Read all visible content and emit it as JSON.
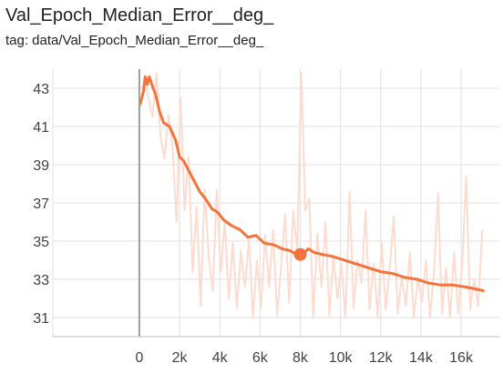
{
  "card": {
    "title": "Val_Epoch_Median_Error__deg_",
    "tag": "tag: data/Val_Epoch_Median_Error__deg_"
  },
  "colors": {
    "smoothed": "#f4733b",
    "raw": "#fcdcd0",
    "grid": "#e0e0e0",
    "axis": "#9e9e9e"
  },
  "chart_data": {
    "type": "line",
    "title": "Val_Epoch_Median_Error__deg_",
    "xlabel": "",
    "ylabel": "",
    "xlim": [
      -4300,
      17900
    ],
    "ylim": [
      30,
      44
    ],
    "x_ticks": [
      0,
      2000,
      4000,
      6000,
      8000,
      10000,
      12000,
      14000,
      16000
    ],
    "x_tick_labels": [
      "0",
      "2k",
      "4k",
      "6k",
      "8k",
      "10k",
      "12k",
      "14k",
      "16k"
    ],
    "y_ticks": [
      31,
      33,
      35,
      37,
      39,
      41,
      43
    ],
    "y_tick_labels": [
      "31",
      "33",
      "35",
      "37",
      "39",
      "41",
      "43"
    ],
    "grid": true,
    "series": [
      {
        "role": "smoothed",
        "x": [
          50,
          200,
          300,
          400,
          500,
          650,
          800,
          1000,
          1200,
          1500,
          1800,
          2000,
          2200,
          2500,
          2800,
          3000,
          3300,
          3600,
          3900,
          4200,
          4600,
          5000,
          5400,
          5800,
          6200,
          6700,
          7100,
          7500,
          7800,
          8000,
          8200,
          8400,
          8700,
          9100,
          9600,
          10200,
          10800,
          11400,
          12000,
          12600,
          13200,
          13800,
          14400,
          15000,
          15600,
          16200,
          16700,
          17100
        ],
        "values": [
          42.2,
          42.8,
          43.6,
          43.2,
          43.6,
          43.1,
          42.7,
          41.8,
          41.2,
          41.0,
          40.3,
          39.4,
          39.2,
          38.6,
          38.0,
          37.6,
          37.2,
          36.7,
          36.5,
          36.1,
          35.8,
          35.6,
          35.2,
          35.3,
          34.9,
          34.8,
          34.6,
          34.5,
          34.3,
          34.3,
          34.4,
          34.6,
          34.4,
          34.3,
          34.2,
          34.0,
          33.8,
          33.6,
          33.4,
          33.3,
          33.1,
          33.0,
          32.8,
          32.7,
          32.7,
          32.6,
          32.5,
          32.4
        ]
      },
      {
        "role": "raw",
        "x": [
          50,
          250,
          450,
          650,
          850,
          1050,
          1250,
          1450,
          1650,
          1850,
          2050,
          2250,
          2450,
          2650,
          2850,
          3050,
          3250,
          3450,
          3650,
          3850,
          4050,
          4250,
          4450,
          4650,
          4850,
          5050,
          5250,
          5450,
          5650,
          5850,
          6050,
          6250,
          6450,
          6650,
          6850,
          7050,
          7250,
          7450,
          7650,
          7850,
          8050,
          8250,
          8450,
          8650,
          8850,
          9050,
          9250,
          9450,
          9650,
          9850,
          10050,
          10250,
          10450,
          10650,
          10850,
          11050,
          11250,
          11450,
          11650,
          11850,
          12050,
          12250,
          12450,
          12650,
          12850,
          13050,
          13250,
          13450,
          13650,
          13850,
          14050,
          14250,
          14450,
          14650,
          14850,
          15050,
          15250,
          15450,
          15650,
          15850,
          16050,
          16250,
          16450,
          16650,
          16850,
          17050
        ],
        "values": [
          42.0,
          43.6,
          42.5,
          41.5,
          43.8,
          40.5,
          39.3,
          41.6,
          40.0,
          36.0,
          42.5,
          36.6,
          39.4,
          33.4,
          36.8,
          31.6,
          37.7,
          34.2,
          32.4,
          37.7,
          33.4,
          36.0,
          32.0,
          34.9,
          31.5,
          34.5,
          32.6,
          35.1,
          31.0,
          34.0,
          31.5,
          35.3,
          32.6,
          35.6,
          31.1,
          33.7,
          36.4,
          31.8,
          36.6,
          34.5,
          43.8,
          36.6,
          37.2,
          31.0,
          35.4,
          32.6,
          36.0,
          31.1,
          34.2,
          32.0,
          33.8,
          31.0,
          37.6,
          31.5,
          34.0,
          32.8,
          36.6,
          31.4,
          33.8,
          31.0,
          34.9,
          31.4,
          33.6,
          36.3,
          31.2,
          33.1,
          31.6,
          34.4,
          31.0,
          33.1,
          31.8,
          34.0,
          31.0,
          33.4,
          37.5,
          31.2,
          33.6,
          31.0,
          34.4,
          31.2,
          33.8,
          38.4,
          31.4,
          33.0,
          31.6,
          35.6
        ]
      }
    ],
    "highlight_point": {
      "x": 8000,
      "y": 34.3
    }
  }
}
